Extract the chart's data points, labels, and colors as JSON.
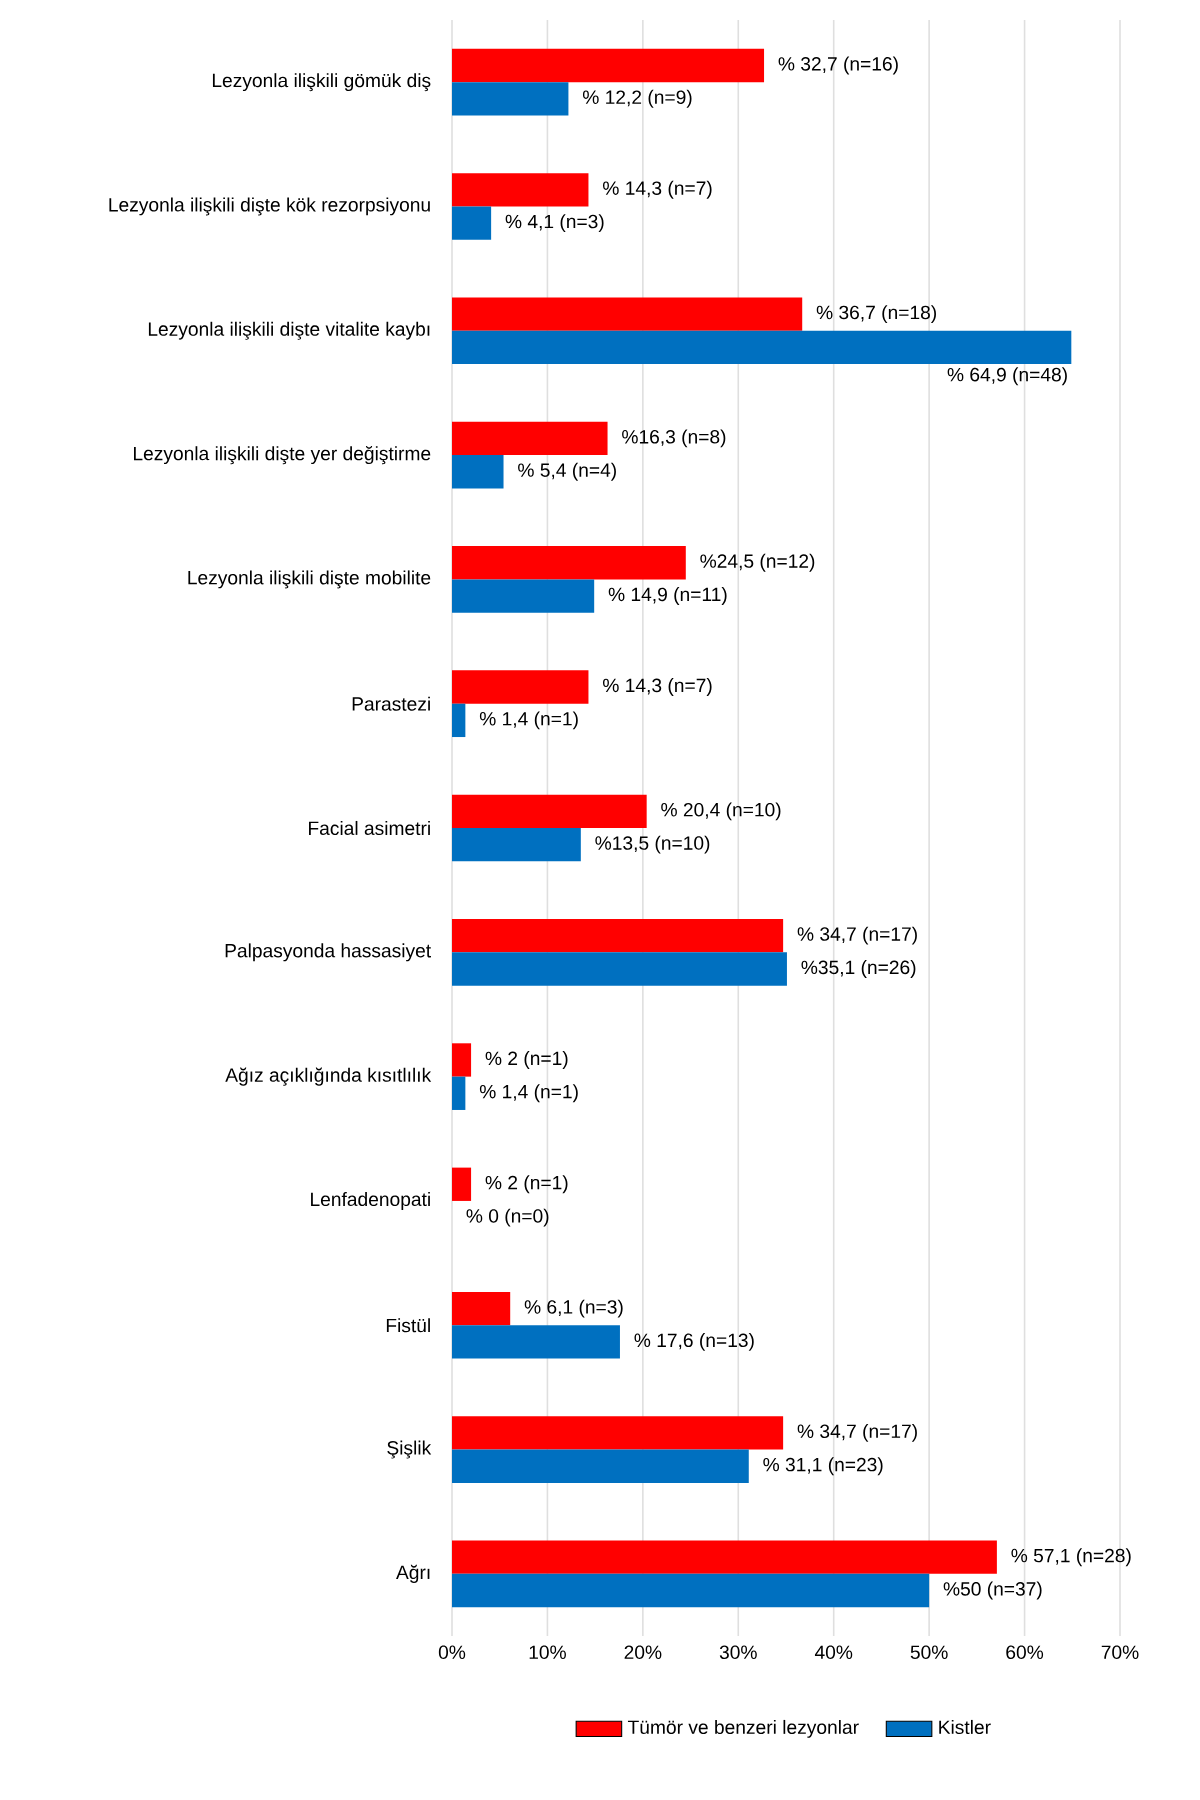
{
  "chart_data": {
    "type": "bar",
    "orientation": "horizontal",
    "categories": [
      "Lezyonla ilişkili gömük diş",
      "Lezyonla ilişkili dişte kök rezorpsiyonu",
      "Lezyonla ilişkili dişte vitalite kaybı",
      "Lezyonla ilişkili dişte yer değiştirme",
      "Lezyonla ilişkili dişte mobilite",
      "Parastezi",
      "Facial asimetri",
      "Palpasyonda hassasiyet",
      "Ağız açıklığında kısıtlılık",
      "Lenfadenopati",
      "Fistül",
      "Şişlik",
      "Ağrı"
    ],
    "series": [
      {
        "name": "Tümör ve benzeri lezyonlar",
        "color": "#ff0000",
        "values": [
          32.7,
          14.3,
          36.7,
          16.3,
          24.5,
          14.3,
          20.4,
          34.7,
          2,
          2,
          6.1,
          34.7,
          57.1
        ],
        "value_labels": [
          "% 32,7 (n=16)",
          "% 14,3 (n=7)",
          "% 36,7 (n=18)",
          "%16,3 (n=8)",
          "%24,5 (n=12)",
          "% 14,3 (n=7)",
          "% 20,4 (n=10)",
          "% 34,7 (n=17)",
          "% 2 (n=1)",
          "% 2 (n=1)",
          "% 6,1 (n=3)",
          "% 34,7 (n=17)",
          "% 57,1 (n=28)"
        ]
      },
      {
        "name": "Kistler",
        "color": "#0070c0",
        "values": [
          12.2,
          4.1,
          64.9,
          5.4,
          14.9,
          1.4,
          13.5,
          35.1,
          1.4,
          0,
          17.6,
          31.1,
          50
        ],
        "value_labels": [
          "% 12,2 (n=9)",
          "% 4,1 (n=3)",
          "% 64,9 (n=48)",
          "% 5,4 (n=4)",
          "% 14,9 (n=11)",
          "% 1,4 (n=1)",
          "%13,5 (n=10)",
          "%35,1 (n=26)",
          "% 1,4 (n=1)",
          "% 0 (n=0)",
          "% 17,6 (n=13)",
          "% 31,1 (n=23)",
          "%50 (n=37)"
        ]
      }
    ],
    "xlim": [
      0,
      70
    ],
    "xticks": [
      {
        "value": 0,
        "label": "0%"
      },
      {
        "value": 10,
        "label": "10%"
      },
      {
        "value": 20,
        "label": "20%"
      },
      {
        "value": 30,
        "label": "30%"
      },
      {
        "value": 40,
        "label": "40%"
      },
      {
        "value": 50,
        "label": "50%"
      },
      {
        "value": 60,
        "label": "60%"
      },
      {
        "value": 70,
        "label": "70%"
      }
    ],
    "grid": "x",
    "legend": "bottom"
  }
}
